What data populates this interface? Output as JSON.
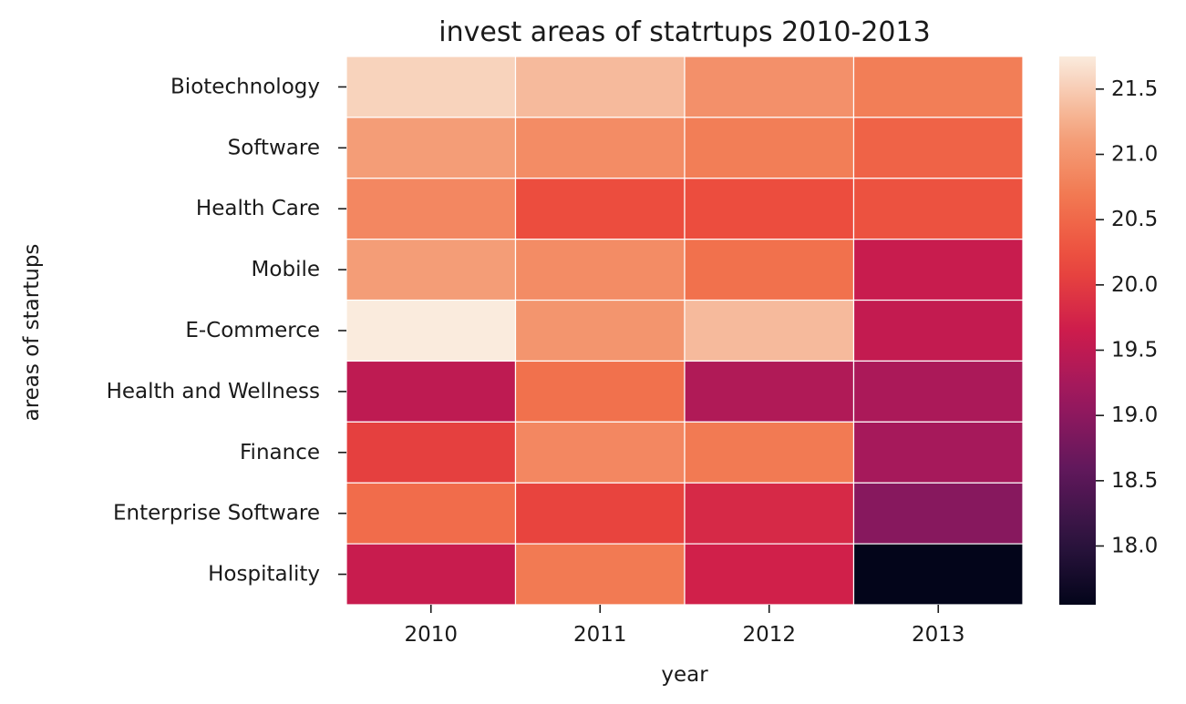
{
  "chart_data": {
    "type": "heatmap",
    "title": "invest areas of statrtups 2010-2013",
    "xlabel": "year",
    "ylabel": "areas of startups",
    "x": [
      "2010",
      "2011",
      "2012",
      "2013"
    ],
    "y": [
      "Biotechnology",
      "Software",
      "Health Care",
      "Mobile",
      "E-Commerce",
      "Health and Wellness",
      "Finance",
      "Enterprise Software",
      "Hospitality"
    ],
    "values": [
      [
        21.55,
        21.35,
        20.95,
        20.75
      ],
      [
        21.1,
        20.9,
        20.75,
        20.45
      ],
      [
        20.85,
        20.2,
        20.2,
        20.25
      ],
      [
        21.1,
        20.9,
        20.6,
        19.6
      ],
      [
        21.75,
        21.0,
        21.35,
        19.55
      ],
      [
        19.5,
        20.6,
        19.35,
        19.3
      ],
      [
        20.05,
        20.85,
        20.7,
        19.25
      ],
      [
        20.55,
        20.1,
        19.8,
        18.95
      ],
      [
        19.6,
        20.7,
        19.7,
        17.55
      ]
    ],
    "colorbar": {
      "range": [
        17.55,
        21.75
      ],
      "ticks": [
        "18.0",
        "18.5",
        "19.0",
        "19.5",
        "20.0",
        "20.5",
        "21.0",
        "21.5"
      ]
    },
    "colormap": "rocket"
  }
}
